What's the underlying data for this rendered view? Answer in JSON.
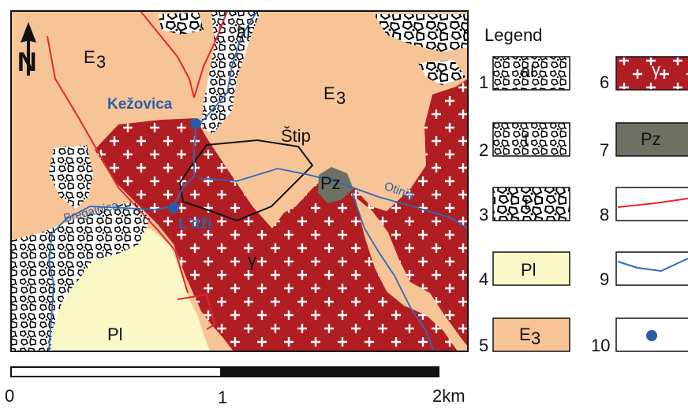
{
  "map": {
    "north_label": "N",
    "units": {
      "E3": {
        "main": "E",
        "sub": "3"
      },
      "Pl": "Pl",
      "Pz": "Pz",
      "gamma": "γ",
      "al": "al"
    },
    "towns": [
      "Kežovica",
      "L'dži",
      "Štip"
    ],
    "rivers": [
      "Bregalnica",
      "Otinja"
    ]
  },
  "legend": {
    "title": "Legend",
    "items": [
      {
        "num": "1",
        "label": "al"
      },
      {
        "num": "2",
        "label": "t"
      },
      {
        "num": "3",
        "label": "t"
      },
      {
        "num": "4",
        "label": "Pl"
      },
      {
        "num": "5",
        "label": "E",
        "sub": "3"
      },
      {
        "num": "6",
        "label": "γ"
      },
      {
        "num": "7",
        "label": "Pz"
      },
      {
        "num": "8",
        "label": ""
      },
      {
        "num": "9",
        "label": ""
      },
      {
        "num": "10",
        "label": ""
      }
    ]
  },
  "scale": {
    "labels": [
      "0",
      "1",
      "2km"
    ]
  },
  "colors": {
    "eocene": "#f7c497",
    "pliocene": "#fbf8c8",
    "granite": "#b01e24",
    "paleozoic": "#6c7163",
    "fault": "#e3262b",
    "river": "#2f6ab8",
    "town": "#2a5ba8"
  }
}
